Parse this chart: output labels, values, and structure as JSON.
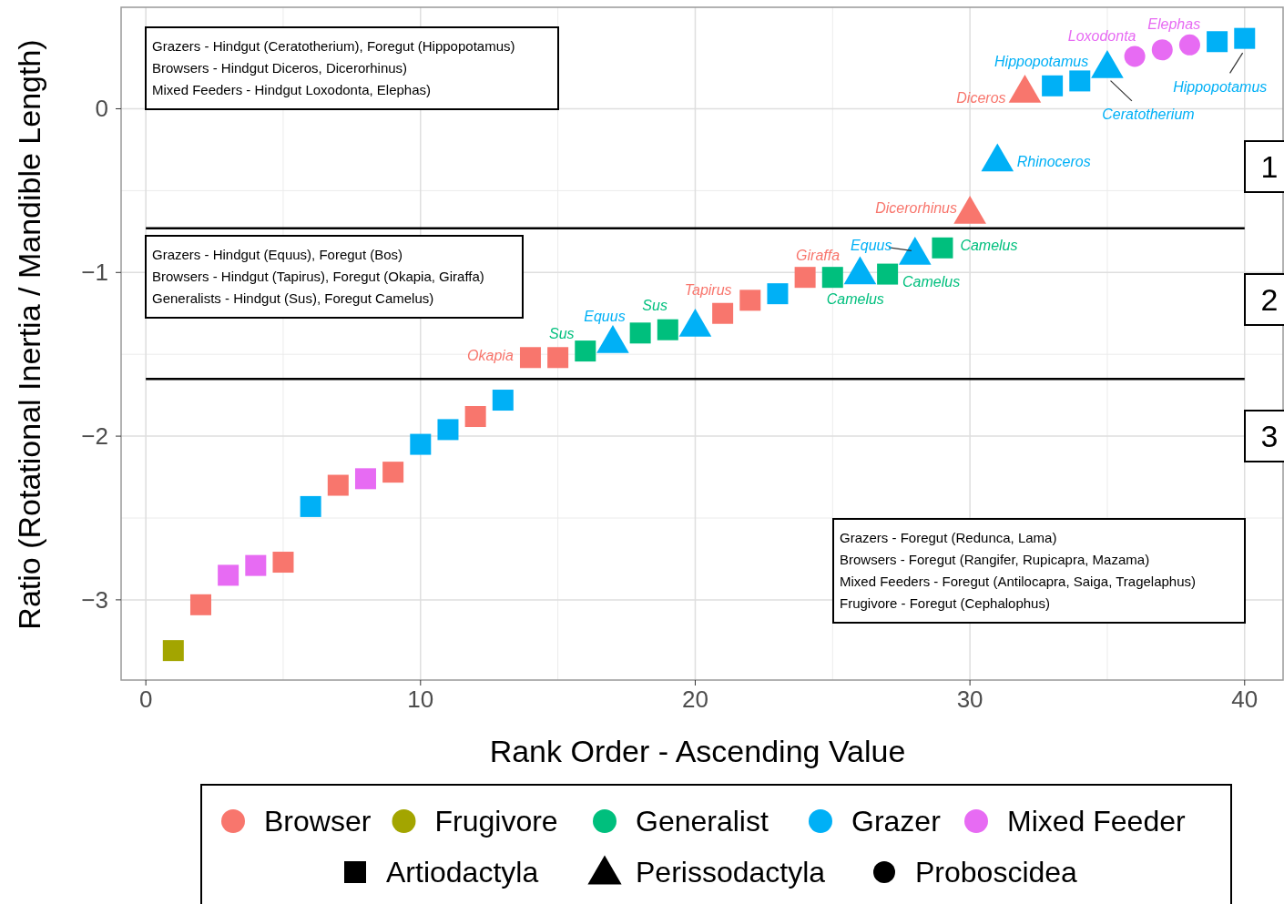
{
  "chart_data": {
    "type": "scatter",
    "xlabel": "Rank Order - Ascending Value",
    "ylabel": "Ratio (Rotational Inertia / Mandible Length)",
    "xlim": [
      -0.9,
      41.4
    ],
    "ylim": [
      -3.49,
      0.62
    ],
    "xticks": [
      0,
      10,
      20,
      30,
      40
    ],
    "yticks": [
      -3,
      -2,
      -1,
      0
    ],
    "grid": true,
    "legend": "bottom",
    "series": [
      {
        "name": "Browser",
        "color": "#f8766d",
        "marker": "square",
        "x": [
          2,
          5,
          7,
          9,
          12,
          14,
          15,
          21,
          22,
          24
        ],
        "values": [
          -3.03,
          -2.77,
          -2.3,
          -2.22,
          -1.88,
          -1.52,
          -1.52,
          -1.25,
          -1.17,
          -1.03
        ]
      },
      {
        "color": "#f8766d",
        "marker": "triangle",
        "x": [
          30,
          32
        ],
        "values": [
          -0.63,
          0.11
        ]
      },
      {
        "name": "Frugivore",
        "color": "#a3a500",
        "marker": "square",
        "x": [
          1
        ],
        "values": [
          -3.31
        ]
      },
      {
        "name": "Generalist",
        "color": "#00bf7d",
        "marker": "square",
        "x": [
          16,
          18,
          19,
          25,
          27,
          29
        ],
        "values": [
          -1.48,
          -1.37,
          -1.35,
          -1.03,
          -1.01,
          -0.85
        ]
      },
      {
        "name": "Grazer",
        "color": "#00b0f6",
        "marker": "square",
        "x": [
          6,
          10,
          11,
          13,
          23,
          33,
          34,
          39,
          40
        ],
        "values": [
          -2.43,
          -2.05,
          -1.96,
          -1.78,
          -1.13,
          0.14,
          0.17,
          0.41,
          0.43
        ]
      },
      {
        "color": "#00b0f6",
        "marker": "triangle",
        "x": [
          17,
          20,
          26,
          28,
          31,
          35
        ],
        "values": [
          -1.42,
          -1.32,
          -1.0,
          -0.88,
          -0.31,
          0.26
        ]
      },
      {
        "name": "Mixed Feeder",
        "color": "#e76bf3",
        "marker": "square",
        "x": [
          3,
          4,
          8
        ],
        "values": [
          -2.85,
          -2.79,
          -2.26
        ]
      },
      {
        "color": "#e76bf3",
        "marker": "circle",
        "x": [
          36,
          37,
          38
        ],
        "values": [
          0.32,
          0.36,
          0.39
        ]
      },
      {
        "name": "Artiodactyla",
        "color": "#000000",
        "marker": "square"
      },
      {
        "name": "Perissodactyla",
        "color": "#000000",
        "marker": "triangle"
      },
      {
        "name": "Proboscidea",
        "color": "#000000",
        "marker": "circle"
      }
    ],
    "ref_lines": [
      {
        "axis": "y",
        "value": -0.73,
        "color": "#000000"
      },
      {
        "axis": "y",
        "value": -1.65,
        "color": "#000000"
      }
    ],
    "annotations": [
      "Grazers - Hindgut (Ceratotherium), Foregut (Hippopotamus)\nBrowsers - Hindgut Diceros, Dicerorhinus)\nMixed Feeders - Hindgut Loxodonta, Elephas)",
      "Grazers - Hindgut (Equus), Foregut (Bos)\nBrowsers - Hindgut (Tapirus), Foregut (Okapia, Giraffa)\nGeneralists - Hindgut (Sus), Foregut Camelus)",
      "Grazers - Foregut (Redunca, Lama)\nBrowsers - Foregut (Rangifer, Rupicapra, Mazama)\nMixed Feeders - Foregut (Antilocapra, Saiga, Tragelaphus)\nFrugivore - Foregut (Cephalophus)",
      "1",
      "2",
      "3",
      {
        "text": "Loxodonta",
        "x": 36,
        "y": 0.32
      },
      {
        "text": "Elephas",
        "x": 37,
        "y": 0.36
      },
      {
        "text": "Hippopotamus",
        "x": 33,
        "y": 0.14
      },
      {
        "text": "Diceros",
        "x": 32,
        "y": 0.11
      },
      {
        "text": "Ceratotherium",
        "x": 35,
        "y": 0.26
      },
      {
        "text": "Hippopotamus",
        "x": 40,
        "y": 0.43
      },
      {
        "text": "Rhinoceros",
        "x": 31,
        "y": -0.31
      },
      {
        "text": "Dicerorhinus",
        "x": 30,
        "y": -0.63
      },
      {
        "text": "Giraffa",
        "x": 24,
        "y": -1.03
      },
      {
        "text": "Equus",
        "x": 28,
        "y": -0.88
      },
      {
        "text": "Camelus",
        "x": 29,
        "y": -0.85
      },
      {
        "text": "Camelus",
        "x": 27,
        "y": -1.01
      },
      {
        "text": "Camelus",
        "x": 25,
        "y": -1.03
      },
      {
        "text": "Tapirus",
        "x": 21,
        "y": -1.25
      },
      {
        "text": "Sus",
        "x": 18,
        "y": -1.37
      },
      {
        "text": "Equus",
        "x": 17,
        "y": -1.42
      },
      {
        "text": "Sus",
        "x": 16,
        "y": -1.48
      },
      {
        "text": "Okapia",
        "x": 14,
        "y": -1.52
      }
    ]
  }
}
